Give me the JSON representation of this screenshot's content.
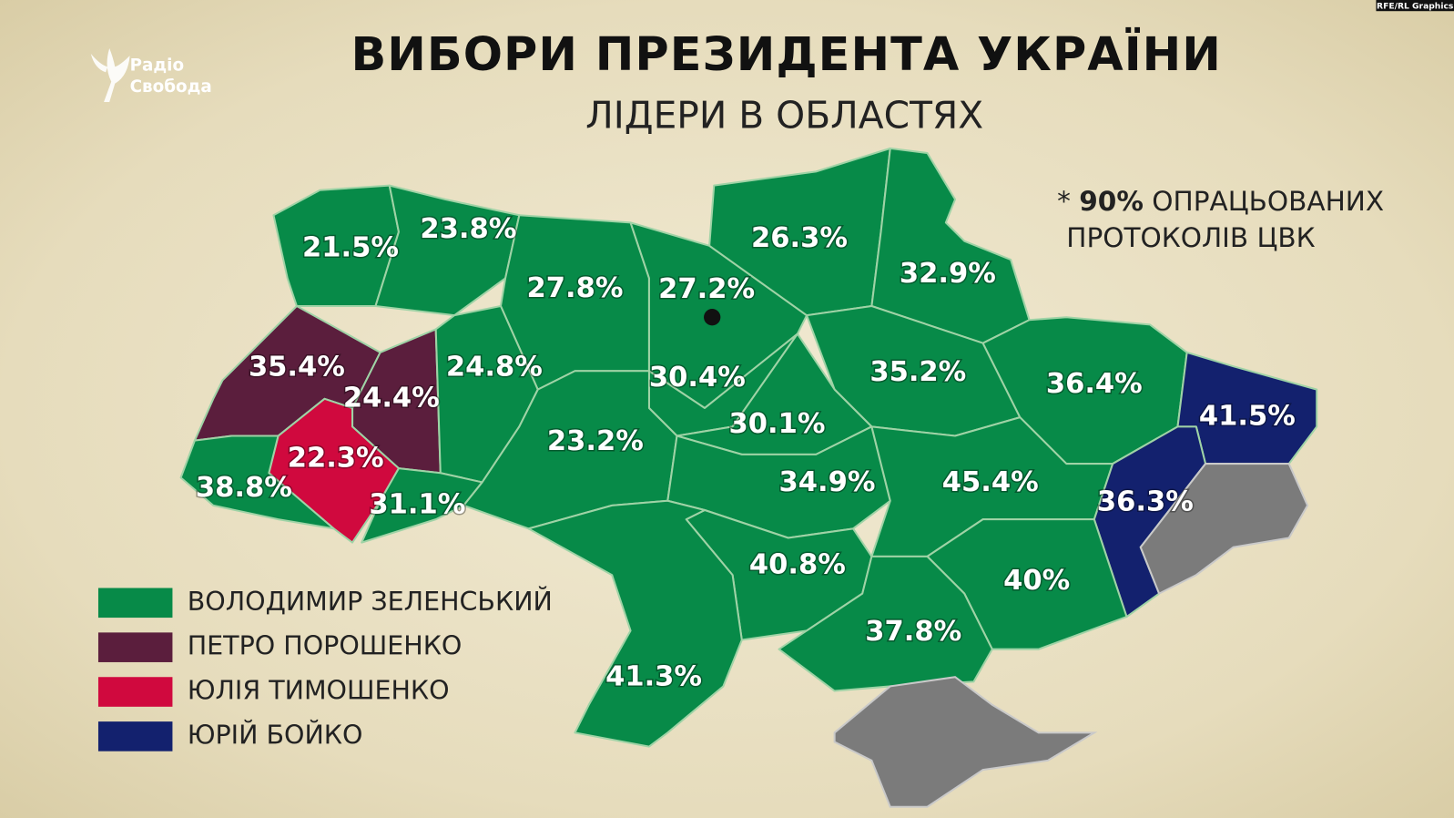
{
  "header": {
    "title": "ВИБОРИ ПРЕЗИДЕНТА УКРАЇНИ",
    "subtitle": "ЛІДЕРИ В ОБЛАСТЯХ",
    "logo": [
      "Радіо",
      "Свобода"
    ],
    "credit": "RFE/RL Graphics"
  },
  "note": {
    "star": "*",
    "bold": "90%",
    "line1": "ОПРАЦЬОВАНИХ",
    "line2": "ПРОТОКОЛІВ ЦВК"
  },
  "legend": [
    {
      "name": "ВОЛОДИМИР ЗЕЛЕНСЬКИЙ",
      "color": "#078a48"
    },
    {
      "name": "ПЕТРО ПОРОШЕНКО",
      "color": "#5b1e3d"
    },
    {
      "name": "ЮЛІЯ ТИМОШЕНКО",
      "color": "#d0093e"
    },
    {
      "name": "ЮРІЙ БОЙКО",
      "color": "#13216e"
    }
  ],
  "regions": [
    {
      "label": "21.5%",
      "color": "#078a48"
    },
    {
      "label": "23.8%",
      "color": "#078a48"
    },
    {
      "label": "27.8%",
      "color": "#078a48"
    },
    {
      "label": "27.2%",
      "color": "#078a48"
    },
    {
      "label": "26.3%",
      "color": "#078a48"
    },
    {
      "label": "32.9%",
      "color": "#078a48"
    },
    {
      "label": "35.4%",
      "color": "#5b1e3d"
    },
    {
      "label": "24.4%",
      "color": "#5b1e3d"
    },
    {
      "label": "24.8%",
      "color": "#078a48"
    },
    {
      "label": "30.4%",
      "color": "#078a48"
    },
    {
      "label": "35.2%",
      "color": "#078a48"
    },
    {
      "label": "36.4%",
      "color": "#078a48"
    },
    {
      "label": "41.5%",
      "color": "#13216e"
    },
    {
      "label": "22.3%",
      "color": "#d0093e"
    },
    {
      "label": "38.8%",
      "color": "#078a48"
    },
    {
      "label": "31.1%",
      "color": "#078a48"
    },
    {
      "label": "23.2%",
      "color": "#078a48"
    },
    {
      "label": "30.1%",
      "color": "#078a48"
    },
    {
      "label": "34.9%",
      "color": "#078a48"
    },
    {
      "label": "45.4%",
      "color": "#078a48"
    },
    {
      "label": "36.3%",
      "color": "#13216e"
    },
    {
      "label": "40.8%",
      "color": "#078a48"
    },
    {
      "label": "40%",
      "color": "#078a48"
    },
    {
      "label": "37.8%",
      "color": "#078a48"
    },
    {
      "label": "41.3%",
      "color": "#078a48"
    }
  ]
}
